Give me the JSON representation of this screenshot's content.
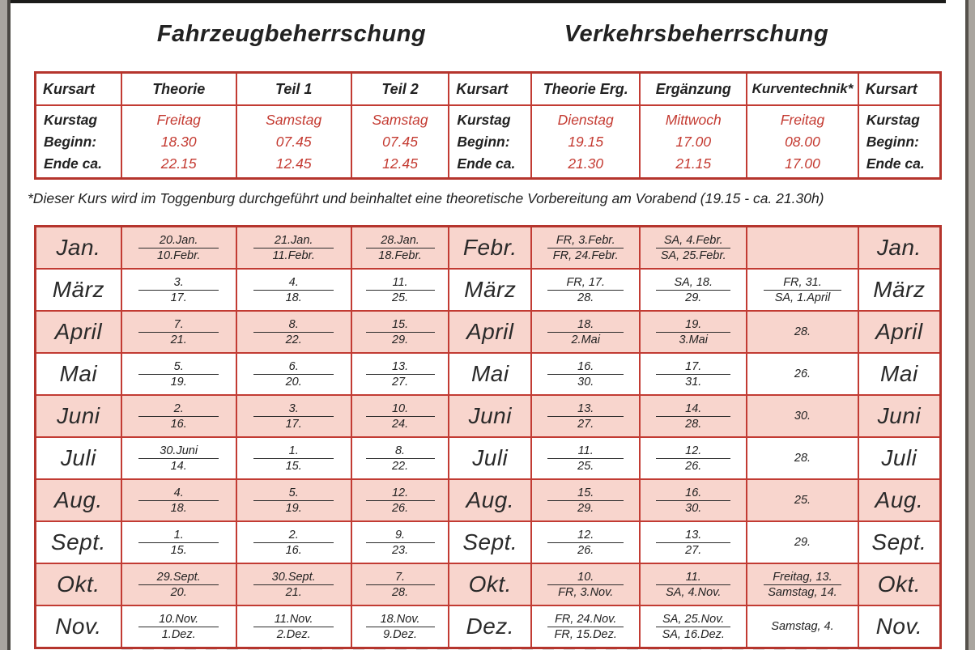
{
  "page": {
    "title_left": "Fahrzeugbeherrschung",
    "title_right": "Verkehrsbeherrschung",
    "footnote": "*Dieser Kurs wird im Toggenburg durchgeführt und beinhaltet eine theoretische Vorbereitung am Vorabend (19.15 - ca. 21.30h)"
  },
  "course_table": {
    "label_header": "Kursart",
    "row_labels": [
      "Kurstag",
      "Beginn:",
      "Ende ca."
    ],
    "columns": [
      {
        "name": "Theorie",
        "day": "Freitag",
        "begin": "18.30",
        "end": "22.15"
      },
      {
        "name": "Teil 1",
        "day": "Samstag",
        "begin": "07.45",
        "end": "12.45"
      },
      {
        "name": "Teil 2",
        "day": "Samstag",
        "begin": "07.45",
        "end": "12.45"
      },
      {
        "name": "Theorie Erg.",
        "day": "Dienstag",
        "begin": "19.15",
        "end": "21.30"
      },
      {
        "name": "Ergänzung",
        "day": "Mittwoch",
        "begin": "17.00",
        "end": "21.15"
      },
      {
        "name": "Kurventechnik*",
        "day": "Freitag",
        "begin": "08.00",
        "end": "17.00"
      }
    ]
  },
  "calendar": {
    "rows": [
      {
        "left": "Jan.",
        "mid": "Febr.",
        "right": "Jan.",
        "shaded": true,
        "cells": [
          [
            "20.Jan.",
            "10.Febr."
          ],
          [
            "21.Jan.",
            "11.Febr."
          ],
          [
            "28.Jan.",
            "18.Febr."
          ],
          [
            "FR, 3.Febr.",
            "FR, 24.Febr."
          ],
          [
            "SA, 4.Febr.",
            "SA, 25.Febr."
          ],
          []
        ]
      },
      {
        "left": "März",
        "mid": "März",
        "right": "März",
        "shaded": false,
        "cells": [
          [
            "3.",
            "17."
          ],
          [
            "4.",
            "18."
          ],
          [
            "11.",
            "25."
          ],
          [
            "FR, 17.",
            "28."
          ],
          [
            "SA, 18.",
            "29."
          ],
          [
            "FR, 31.",
            "SA, 1.April"
          ]
        ]
      },
      {
        "left": "April",
        "mid": "April",
        "right": "April",
        "shaded": true,
        "cells": [
          [
            "7.",
            "21."
          ],
          [
            "8.",
            "22."
          ],
          [
            "15.",
            "29."
          ],
          [
            "18.",
            "2.Mai"
          ],
          [
            "19.",
            "3.Mai"
          ],
          [
            "28."
          ]
        ]
      },
      {
        "left": "Mai",
        "mid": "Mai",
        "right": "Mai",
        "shaded": false,
        "cells": [
          [
            "5.",
            "19."
          ],
          [
            "6.",
            "20."
          ],
          [
            "13.",
            "27."
          ],
          [
            "16.",
            "30."
          ],
          [
            "17.",
            "31."
          ],
          [
            "26."
          ]
        ]
      },
      {
        "left": "Juni",
        "mid": "Juni",
        "right": "Juni",
        "shaded": true,
        "cells": [
          [
            "2.",
            "16."
          ],
          [
            "3.",
            "17."
          ],
          [
            "10.",
            "24."
          ],
          [
            "13.",
            "27."
          ],
          [
            "14.",
            "28."
          ],
          [
            "30."
          ]
        ]
      },
      {
        "left": "Juli",
        "mid": "Juli",
        "right": "Juli",
        "shaded": false,
        "cells": [
          [
            "30.Juni",
            "14."
          ],
          [
            "1.",
            "15."
          ],
          [
            "8.",
            "22."
          ],
          [
            "11.",
            "25."
          ],
          [
            "12.",
            "26."
          ],
          [
            "28."
          ]
        ]
      },
      {
        "left": "Aug.",
        "mid": "Aug.",
        "right": "Aug.",
        "shaded": true,
        "cells": [
          [
            "4.",
            "18."
          ],
          [
            "5.",
            "19."
          ],
          [
            "12.",
            "26."
          ],
          [
            "15.",
            "29."
          ],
          [
            "16.",
            "30."
          ],
          [
            "25."
          ]
        ]
      },
      {
        "left": "Sept.",
        "mid": "Sept.",
        "right": "Sept.",
        "shaded": false,
        "cells": [
          [
            "1.",
            "15."
          ],
          [
            "2.",
            "16."
          ],
          [
            "9.",
            "23."
          ],
          [
            "12.",
            "26."
          ],
          [
            "13.",
            "27."
          ],
          [
            "29."
          ]
        ]
      },
      {
        "left": "Okt.",
        "mid": "Okt.",
        "right": "Okt.",
        "shaded": true,
        "cells": [
          [
            "29.Sept.",
            "20."
          ],
          [
            "30.Sept.",
            "21."
          ],
          [
            "7.",
            "28."
          ],
          [
            "10.",
            "FR, 3.Nov."
          ],
          [
            "11.",
            "SA, 4.Nov."
          ],
          [
            "Freitag, 13.",
            "Samstag, 14."
          ]
        ]
      },
      {
        "left": "Nov.",
        "mid": "Dez.",
        "right": "Nov.",
        "shaded": false,
        "cells": [
          [
            "10.Nov.",
            "1.Dez."
          ],
          [
            "11.Nov.",
            "2.Dez."
          ],
          [
            "18.Nov.",
            "9.Dez."
          ],
          [
            "FR, 24.Nov.",
            "FR, 15.Dez."
          ],
          [
            "SA, 25.Nov.",
            "SA, 16.Dez."
          ],
          [
            "Samstag, 4."
          ]
        ]
      }
    ]
  },
  "colors": {
    "border_red": "#b5352d",
    "inner_red": "#c23b33",
    "value_red": "#c43a31",
    "row_pink": "#f8d5cd",
    "text_black": "#222222",
    "scan_gray": "#a9a59f"
  }
}
